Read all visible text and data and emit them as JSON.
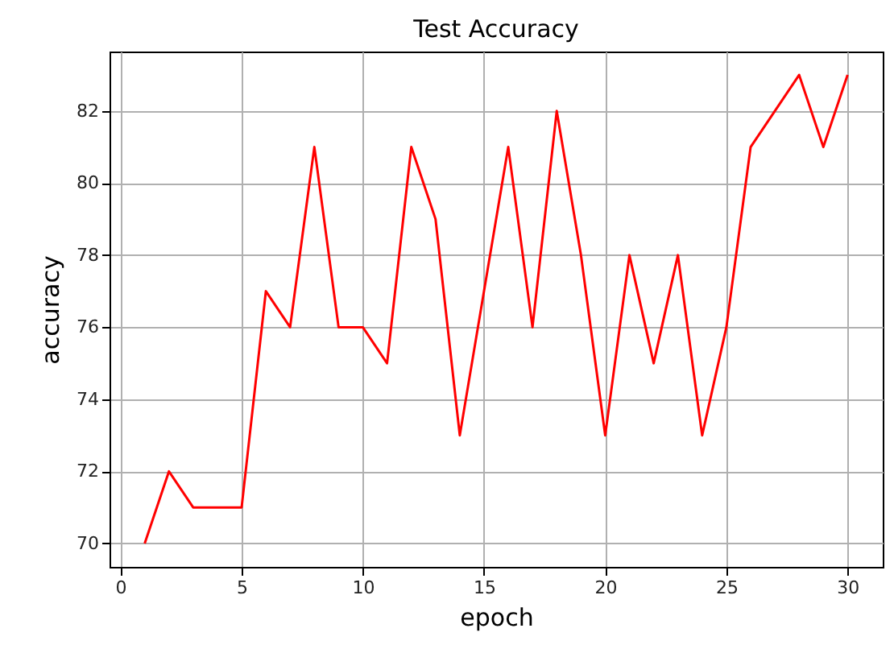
{
  "chart_data": {
    "type": "line",
    "title": "Test Accuracy",
    "xlabel": "epoch",
    "ylabel": "accuracy",
    "x": [
      1,
      2,
      3,
      4,
      5,
      6,
      7,
      8,
      9,
      10,
      11,
      12,
      13,
      14,
      15,
      16,
      17,
      18,
      19,
      20,
      21,
      22,
      23,
      24,
      25,
      26,
      27,
      28,
      29,
      30
    ],
    "series": [
      {
        "color": "#ff0000",
        "values": [
          70,
          72,
          71,
          71,
          71,
          77,
          76,
          81,
          76,
          76,
          75,
          81,
          79,
          73,
          77,
          81,
          76,
          82,
          78,
          73,
          78,
          75,
          78,
          73,
          76,
          81,
          82,
          83,
          81,
          83
        ]
      }
    ],
    "xlim": [
      -0.45,
      31.45
    ],
    "xticks": [
      0,
      5,
      10,
      15,
      20,
      25,
      30
    ],
    "ylim": [
      69.35,
      83.65
    ],
    "yticks": [
      70,
      72,
      74,
      76,
      78,
      80,
      82
    ],
    "grid": true,
    "marker": "none",
    "line_style": "solid"
  }
}
